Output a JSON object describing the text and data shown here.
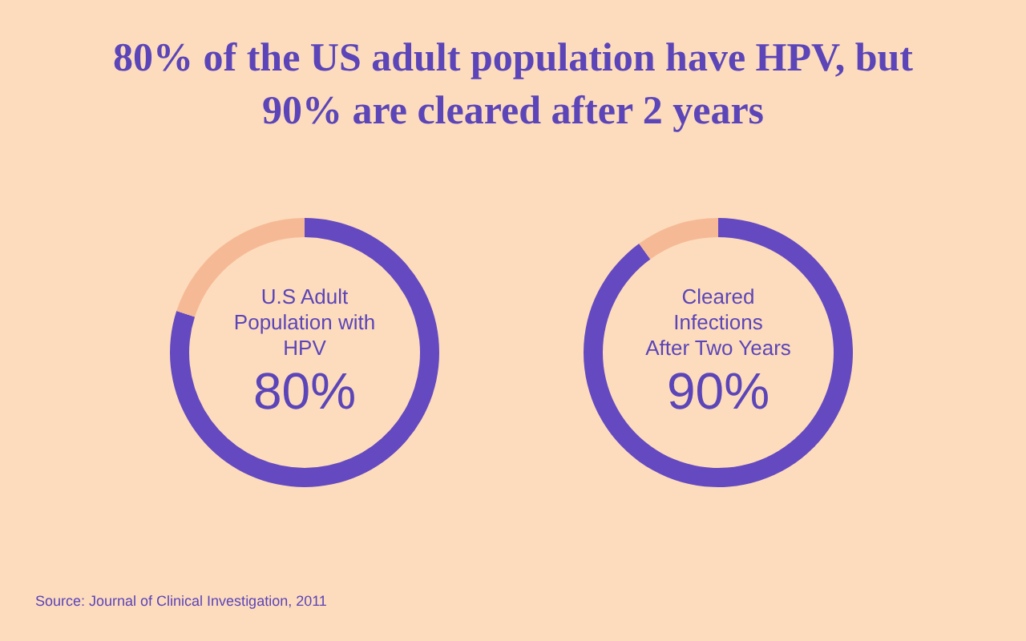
{
  "chart_data": [
    {
      "type": "donut",
      "title": "80% of the US adult population have HPV, but 90% are cleared after 2 years",
      "categories": [
        "U.S Adult Population with HPV",
        null
      ],
      "values": [
        80,
        20
      ],
      "colors": [
        "#6549c0",
        "#f6b995"
      ],
      "value_labels": [
        "80%",
        null
      ],
      "annotations": [
        "Source: Journal of Clinical Investigation, 2011"
      ]
    },
    {
      "type": "donut",
      "categories": [
        "Cleared Infections After Two Years",
        null
      ],
      "values": [
        90,
        10
      ],
      "colors": [
        "#6549c0",
        "#f6b995"
      ],
      "value_labels": [
        "90%",
        null
      ]
    }
  ]
}
